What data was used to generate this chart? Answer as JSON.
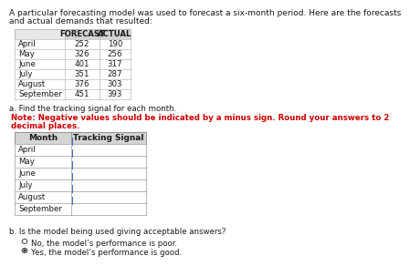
{
  "title_line1": "A particular forecasting model was used to forecast a six-month period. Here are the forecasts",
  "title_line2": "and actual demands that resulted:",
  "data_table": {
    "headers": [
      "",
      "FORECAST",
      "ACTUAL"
    ],
    "rows": [
      [
        "April",
        "252",
        "190"
      ],
      [
        "May",
        "326",
        "256"
      ],
      [
        "June",
        "401",
        "317"
      ],
      [
        "July",
        "351",
        "287"
      ],
      [
        "August",
        "376",
        "303"
      ],
      [
        "September",
        "451",
        "393"
      ]
    ]
  },
  "part_a_label": "a. Find the tracking signal for each month.",
  "note_line1": "Note: Negative values should be indicated by a minus sign. Round your answers to 2",
  "note_line2": "decimal places.",
  "tracking_headers": [
    "Month",
    "Tracking Signal"
  ],
  "tracking_months": [
    "April",
    "May",
    "June",
    "July",
    "August",
    "September"
  ],
  "part_b_label": "b. Is the model being used giving acceptable answers?",
  "option_no": "No, the model’s performance is poor.",
  "option_yes": "Yes, the model’s performance is good.",
  "bg_color": "#ffffff",
  "text_color": "#1a1a1a",
  "note_color": "#cc0000",
  "header_bg": "#d4d4d4",
  "cell_bg": "#ffffff",
  "border_color": "#aaaaaa",
  "blue_line": "#4472c4",
  "title_fs": 6.5,
  "body_fs": 6.2,
  "note_fs": 6.2,
  "header_fs": 6.4
}
